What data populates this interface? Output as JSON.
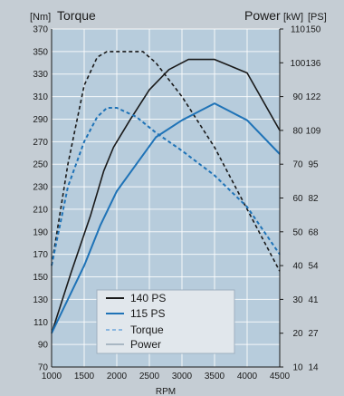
{
  "header": {
    "left_unit": "[Nm]",
    "left_title": "Torque",
    "right_title": "Power",
    "right_unit_kw": "[kW]",
    "right_unit_ps": "[PS]"
  },
  "legend": {
    "entries": [
      {
        "label": "140 PS",
        "color": "#1a1a1a",
        "style": "solid"
      },
      {
        "label": "115 PS",
        "color": "#1f73b7",
        "style": "solid"
      },
      {
        "label": "Torque",
        "color": "#8ab6df",
        "style": "dashed"
      },
      {
        "label": "Power",
        "color": "#a9b7c3",
        "style": "solid"
      }
    ]
  },
  "chart_data": {
    "type": "line",
    "xlabel": "RPM",
    "x_ticks": [
      1000,
      1500,
      2000,
      2500,
      3000,
      3500,
      4000,
      4500
    ],
    "xlim": [
      1000,
      4500
    ],
    "torque_axis": {
      "unit": "Nm",
      "ylim": [
        70,
        370
      ],
      "ticks": [
        70,
        90,
        110,
        130,
        150,
        170,
        190,
        210,
        230,
        250,
        270,
        290,
        310,
        330,
        350,
        370
      ]
    },
    "power_axis": {
      "unit_kw": "kW",
      "unit_ps": "PS",
      "ylim_kw": [
        10,
        110
      ],
      "kw_ticks": [
        10,
        20,
        30,
        40,
        50,
        60,
        70,
        80,
        90,
        100,
        110
      ],
      "ps_ticks": [
        14,
        27,
        41,
        54,
        68,
        82,
        95,
        109,
        122,
        136,
        150
      ]
    },
    "grid": true,
    "series": [
      {
        "name": "140 PS Torque",
        "axis": "torque",
        "style": "dashed",
        "color": "#1a1a1a",
        "x": [
          1000,
          1250,
          1500,
          1700,
          1850,
          2000,
          2200,
          2400,
          2600,
          3000,
          3500,
          4000,
          4500
        ],
        "y": [
          160,
          250,
          320,
          345,
          350,
          350,
          350,
          350,
          340,
          310,
          265,
          210,
          155
        ]
      },
      {
        "name": "140 PS Power",
        "axis": "power",
        "style": "solid",
        "color": "#1a1a1a",
        "x": [
          1000,
          1300,
          1600,
          1800,
          1950,
          2200,
          2500,
          2800,
          3100,
          3500,
          4000,
          4500
        ],
        "y": [
          20,
          38,
          55,
          68,
          75,
          83,
          92,
          98,
          101,
          101,
          97,
          80
        ]
      },
      {
        "name": "115 PS Torque",
        "axis": "torque",
        "style": "dashed",
        "color": "#1f73b7",
        "x": [
          1000,
          1250,
          1500,
          1700,
          1850,
          2000,
          2300,
          2600,
          3000,
          3500,
          4000,
          4500
        ],
        "y": [
          160,
          230,
          270,
          292,
          300,
          300,
          292,
          278,
          262,
          240,
          212,
          170
        ]
      },
      {
        "name": "115 PS Power",
        "axis": "power",
        "style": "solid",
        "color": "#1f73b7",
        "x": [
          1000,
          1500,
          1750,
          2000,
          2300,
          2600,
          3000,
          3300,
          3500,
          4000,
          4500
        ],
        "y": [
          20,
          40,
          52,
          62,
          70,
          78,
          83,
          86,
          88,
          83,
          73
        ]
      }
    ]
  }
}
